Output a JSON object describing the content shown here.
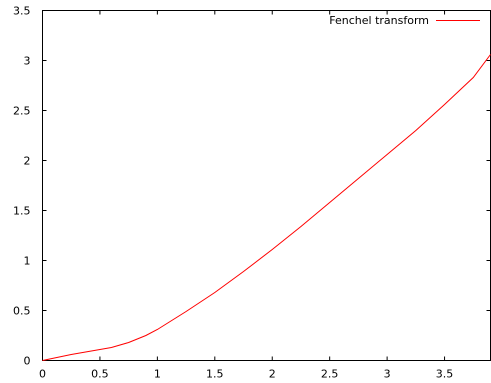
{
  "chart_data": {
    "type": "line",
    "title": "",
    "xlabel": "",
    "ylabel": "",
    "xlim": [
      0,
      3.9
    ],
    "ylim": [
      0,
      3.5
    ],
    "xticks": [
      0,
      0.5,
      1,
      1.5,
      2,
      2.5,
      3,
      3.5
    ],
    "xtick_labels": [
      "0",
      "0.5",
      "1",
      "1.5",
      "2",
      "2.5",
      "3",
      "3.5"
    ],
    "yticks": [
      0,
      0.5,
      1,
      1.5,
      2,
      2.5,
      3,
      3.5
    ],
    "ytick_labels": [
      "0",
      "0.5",
      "1",
      "1.5",
      "2",
      "2.5",
      "3",
      "3.5"
    ],
    "grid": false,
    "legend_position": "top-right",
    "series": [
      {
        "name": "Fenchel transform",
        "color": "#ff0000",
        "x": [
          0,
          0.25,
          0.5,
          0.6,
          0.75,
          0.9,
          1.0,
          1.25,
          1.5,
          1.75,
          2.0,
          2.25,
          2.5,
          2.75,
          3.0,
          3.25,
          3.5,
          3.75,
          3.9
        ],
        "y": [
          0,
          0.06,
          0.11,
          0.13,
          0.18,
          0.25,
          0.31,
          0.49,
          0.68,
          0.89,
          1.11,
          1.34,
          1.58,
          1.82,
          2.06,
          2.3,
          2.56,
          2.83,
          3.06
        ]
      }
    ]
  }
}
